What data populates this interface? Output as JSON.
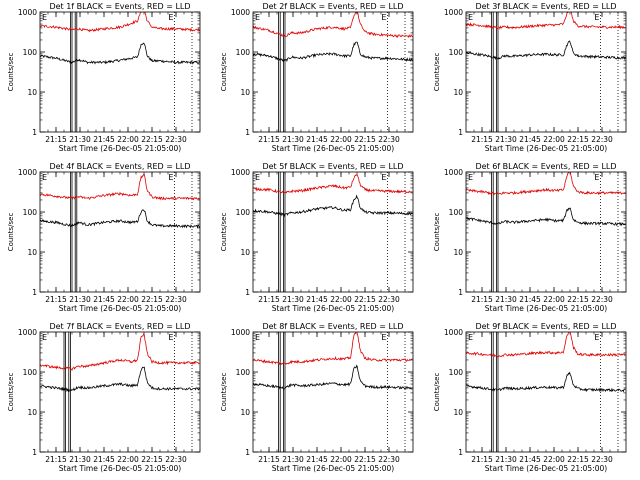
{
  "colors": {
    "events": "#000000",
    "lld": "#e00000",
    "axes": "#000000"
  },
  "chart_data": [
    {
      "type": "line",
      "title": "Det 1f BLACK = Events, RED = LLD",
      "xlabel": "Start Time (26-Dec-05 21:05:00)",
      "ylabel": "Counts/sec",
      "xticks": [
        "21:15",
        "21:30",
        "21:45",
        "22:00",
        "22:15",
        "22:30"
      ],
      "yticks": [
        "1",
        "10",
        "100",
        "1000"
      ],
      "yscale": "log",
      "ylim": [
        1,
        1000
      ],
      "xlim_minutes": [
        0,
        100
      ],
      "markers": [
        "E",
        "E"
      ],
      "vlines_solid": [
        19,
        20,
        22,
        23
      ],
      "vlines_dotted": [
        84,
        95
      ],
      "series": [
        {
          "name": "BLACK",
          "x": [
            0,
            10,
            20,
            24,
            30,
            40,
            50,
            57,
            61,
            63,
            65,
            67,
            70,
            75,
            85,
            95,
            100
          ],
          "y": [
            80,
            70,
            55,
            65,
            55,
            55,
            62,
            70,
            75,
            150,
            180,
            80,
            60,
            60,
            55,
            55,
            55
          ]
        },
        {
          "name": "RED",
          "x": [
            0,
            10,
            20,
            24,
            30,
            40,
            50,
            57,
            61,
            63,
            65,
            67,
            70,
            75,
            85,
            95,
            100
          ],
          "y": [
            450,
            420,
            360,
            380,
            340,
            380,
            420,
            520,
            600,
            1000,
            1200,
            600,
            420,
            380,
            380,
            360,
            360
          ]
        }
      ]
    },
    {
      "type": "line",
      "title": "Det 2f BLACK = Events, RED = LLD",
      "xlabel": "Start Time (26-Dec-05 21:05:00)",
      "ylabel": "Counts/sec",
      "xticks": [
        "21:15",
        "21:30",
        "21:45",
        "22:00",
        "22:15",
        "22:30"
      ],
      "yticks": [
        "1",
        "10",
        "100",
        "1000"
      ],
      "yscale": "log",
      "ylim": [
        1,
        1000
      ],
      "xlim_minutes": [
        0,
        100
      ],
      "markers": [
        "E",
        "E"
      ],
      "vlines_solid": [
        16,
        17,
        19,
        20
      ],
      "vlines_dotted": [
        84,
        95
      ],
      "series": [
        {
          "name": "BLACK",
          "x": [
            0,
            10,
            20,
            24,
            30,
            40,
            50,
            57,
            61,
            63,
            65,
            67,
            70,
            75,
            85,
            95,
            100
          ],
          "y": [
            90,
            80,
            60,
            75,
            70,
            85,
            90,
            80,
            80,
            150,
            180,
            90,
            75,
            70,
            70,
            65,
            65
          ]
        },
        {
          "name": "RED",
          "x": [
            0,
            10,
            20,
            24,
            30,
            40,
            50,
            57,
            61,
            63,
            65,
            67,
            70,
            75,
            85,
            95,
            100
          ],
          "y": [
            420,
            350,
            250,
            300,
            300,
            380,
            420,
            380,
            400,
            800,
            1100,
            500,
            320,
            280,
            260,
            250,
            250
          ]
        }
      ]
    },
    {
      "type": "line",
      "title": "Det 3f BLACK = Events, RED = LLD",
      "xlabel": "Start Time (26-Dec-05 21:05:00)",
      "ylabel": "Counts/sec",
      "xticks": [
        "21:15",
        "21:30",
        "21:45",
        "22:00",
        "22:15",
        "22:30"
      ],
      "yticks": [
        "1",
        "10",
        "100",
        "1000"
      ],
      "yscale": "log",
      "ylim": [
        1,
        1000
      ],
      "xlim_minutes": [
        0,
        100
      ],
      "markers": [
        "E",
        "E"
      ],
      "vlines_solid": [
        16,
        17,
        19,
        20
      ],
      "vlines_dotted": [
        84,
        95
      ],
      "series": [
        {
          "name": "BLACK",
          "x": [
            0,
            10,
            20,
            24,
            30,
            40,
            50,
            57,
            61,
            63,
            65,
            67,
            70,
            75,
            85,
            95,
            100
          ],
          "y": [
            95,
            85,
            70,
            80,
            78,
            85,
            88,
            85,
            85,
            150,
            190,
            95,
            80,
            78,
            75,
            72,
            72
          ]
        },
        {
          "name": "RED",
          "x": [
            0,
            10,
            20,
            24,
            30,
            40,
            50,
            57,
            61,
            63,
            65,
            67,
            70,
            75,
            85,
            95,
            100
          ],
          "y": [
            500,
            460,
            400,
            420,
            410,
            440,
            470,
            480,
            500,
            900,
            1300,
            600,
            450,
            430,
            420,
            420,
            420
          ]
        }
      ]
    },
    {
      "type": "line",
      "title": "Det 4f BLACK = Events, RED = LLD",
      "xlabel": "Start Time (26-Dec-05 21:05:00)",
      "ylabel": "Counts/sec",
      "xticks": [
        "21:15",
        "21:30",
        "21:45",
        "22:00",
        "22:15",
        "22:30"
      ],
      "yticks": [
        "1",
        "10",
        "100",
        "1000"
      ],
      "yscale": "log",
      "ylim": [
        1,
        1000
      ],
      "xlim_minutes": [
        0,
        100
      ],
      "markers": [
        "E",
        "E"
      ],
      "vlines_solid": [
        19,
        20,
        22,
        23
      ],
      "vlines_dotted": [
        84,
        95
      ],
      "series": [
        {
          "name": "BLACK",
          "x": [
            0,
            10,
            20,
            24,
            30,
            40,
            50,
            57,
            61,
            63,
            65,
            67,
            70,
            75,
            85,
            95,
            100
          ],
          "y": [
            60,
            55,
            45,
            55,
            48,
            55,
            60,
            55,
            58,
            100,
            120,
            60,
            48,
            45,
            45,
            44,
            44
          ]
        },
        {
          "name": "RED",
          "x": [
            0,
            10,
            20,
            24,
            30,
            40,
            50,
            57,
            61,
            63,
            65,
            67,
            70,
            75,
            85,
            95,
            100
          ],
          "y": [
            280,
            250,
            220,
            240,
            220,
            260,
            290,
            260,
            280,
            700,
            900,
            350,
            240,
            220,
            220,
            220,
            220
          ]
        }
      ]
    },
    {
      "type": "line",
      "title": "Det 5f BLACK = Events, RED = LLD",
      "xlabel": "Start Time (26-Dec-05 21:05:00)",
      "ylabel": "Counts/sec",
      "xticks": [
        "21:15",
        "21:30",
        "21:45",
        "22:00",
        "22:15",
        "22:30"
      ],
      "yticks": [
        "1",
        "10",
        "100",
        "1000"
      ],
      "yscale": "log",
      "ylim": [
        1,
        1000
      ],
      "xlim_minutes": [
        0,
        100
      ],
      "markers": [
        "E",
        "E"
      ],
      "vlines_solid": [
        16,
        17,
        19,
        20
      ],
      "vlines_dotted": [
        84,
        95
      ],
      "series": [
        {
          "name": "BLACK",
          "x": [
            0,
            10,
            20,
            24,
            30,
            40,
            50,
            57,
            61,
            63,
            65,
            67,
            70,
            75,
            85,
            95,
            100
          ],
          "y": [
            110,
            100,
            85,
            95,
            100,
            120,
            130,
            110,
            115,
            200,
            250,
            130,
            100,
            95,
            95,
            92,
            92
          ]
        },
        {
          "name": "RED",
          "x": [
            0,
            10,
            20,
            24,
            30,
            40,
            50,
            57,
            61,
            63,
            65,
            67,
            70,
            75,
            85,
            95,
            100
          ],
          "y": [
            380,
            360,
            300,
            330,
            340,
            400,
            450,
            400,
            420,
            700,
            900,
            480,
            360,
            340,
            330,
            320,
            330
          ]
        }
      ]
    },
    {
      "type": "line",
      "title": "Det 6f BLACK = Events, RED = LLD",
      "xlabel": "Start Time (26-Dec-05 21:05:00)",
      "ylabel": "Counts/sec",
      "xticks": [
        "21:15",
        "21:30",
        "21:45",
        "22:00",
        "22:15",
        "22:30"
      ],
      "yticks": [
        "1",
        "10",
        "100",
        "1000"
      ],
      "yscale": "log",
      "ylim": [
        1,
        1000
      ],
      "xlim_minutes": [
        0,
        100
      ],
      "markers": [
        "E",
        "E"
      ],
      "vlines_solid": [
        16,
        17,
        19,
        20
      ],
      "vlines_dotted": [
        84,
        95
      ],
      "series": [
        {
          "name": "BLACK",
          "x": [
            0,
            10,
            20,
            24,
            30,
            40,
            50,
            57,
            61,
            63,
            65,
            67,
            70,
            75,
            85,
            95,
            100
          ],
          "y": [
            70,
            60,
            50,
            58,
            55,
            60,
            65,
            60,
            62,
            110,
            130,
            65,
            55,
            52,
            52,
            50,
            50
          ]
        },
        {
          "name": "RED",
          "x": [
            0,
            10,
            20,
            24,
            30,
            40,
            50,
            57,
            61,
            63,
            65,
            67,
            70,
            75,
            85,
            95,
            100
          ],
          "y": [
            350,
            320,
            280,
            300,
            300,
            330,
            360,
            340,
            360,
            800,
            1100,
            450,
            320,
            300,
            300,
            300,
            300
          ]
        }
      ]
    },
    {
      "type": "line",
      "title": "Det 7f BLACK = Events, RED = LLD",
      "xlabel": "Start Time (26-Dec-05 21:05:00)",
      "ylabel": "Counts/sec",
      "xticks": [
        "21:15",
        "21:30",
        "21:45",
        "22:00",
        "22:15",
        "22:30"
      ],
      "yticks": [
        "1",
        "10",
        "100",
        "1000"
      ],
      "yscale": "log",
      "ylim": [
        1,
        1000
      ],
      "xlim_minutes": [
        0,
        100
      ],
      "markers": [
        "E",
        "E"
      ],
      "vlines_solid": [
        15,
        16,
        18,
        19
      ],
      "vlines_dotted": [
        84,
        95
      ],
      "series": [
        {
          "name": "BLACK",
          "x": [
            0,
            10,
            20,
            24,
            30,
            40,
            50,
            57,
            61,
            63,
            65,
            67,
            70,
            75,
            85,
            95,
            100
          ],
          "y": [
            45,
            40,
            35,
            42,
            40,
            45,
            50,
            45,
            48,
            110,
            140,
            55,
            40,
            38,
            38,
            38,
            38
          ]
        },
        {
          "name": "RED",
          "x": [
            0,
            10,
            20,
            24,
            30,
            40,
            50,
            57,
            61,
            63,
            65,
            67,
            70,
            75,
            85,
            95,
            100
          ],
          "y": [
            150,
            130,
            120,
            140,
            140,
            170,
            200,
            180,
            200,
            700,
            900,
            300,
            180,
            170,
            170,
            170,
            170
          ]
        }
      ]
    },
    {
      "type": "line",
      "title": "Det 8f BLACK = Events, RED = LLD",
      "xlabel": "Start Time (26-Dec-05 21:05:00)",
      "ylabel": "Counts/sec",
      "xticks": [
        "21:15",
        "21:30",
        "21:45",
        "22:00",
        "22:15",
        "22:30"
      ],
      "yticks": [
        "1",
        "10",
        "100",
        "1000"
      ],
      "yscale": "log",
      "ylim": [
        1,
        1000
      ],
      "xlim_minutes": [
        0,
        100
      ],
      "markers": [
        "E",
        "E"
      ],
      "vlines_solid": [
        16,
        17,
        19,
        20
      ],
      "vlines_dotted": [
        84,
        95
      ],
      "series": [
        {
          "name": "BLACK",
          "x": [
            0,
            10,
            20,
            24,
            30,
            40,
            50,
            57,
            61,
            63,
            65,
            67,
            70,
            75,
            85,
            95,
            100
          ],
          "y": [
            50,
            45,
            40,
            48,
            45,
            48,
            52,
            48,
            50,
            120,
            140,
            60,
            45,
            42,
            42,
            40,
            40
          ]
        },
        {
          "name": "RED",
          "x": [
            0,
            10,
            20,
            24,
            30,
            40,
            50,
            57,
            61,
            63,
            65,
            67,
            70,
            75,
            85,
            95,
            100
          ],
          "y": [
            200,
            180,
            160,
            180,
            180,
            200,
            220,
            210,
            230,
            800,
            1100,
            350,
            220,
            200,
            200,
            200,
            200
          ]
        }
      ]
    },
    {
      "type": "line",
      "title": "Det 9f BLACK = Events, RED = LLD",
      "xlabel": "Start Time (26-Dec-05 21:05:00)",
      "ylabel": "Counts/sec",
      "xticks": [
        "21:15",
        "21:30",
        "21:45",
        "22:00",
        "22:15",
        "22:30"
      ],
      "yticks": [
        "1",
        "10",
        "100",
        "1000"
      ],
      "yscale": "log",
      "ylim": [
        1,
        1000
      ],
      "xlim_minutes": [
        0,
        100
      ],
      "markers": [
        "E",
        "E"
      ],
      "vlines_solid": [
        16,
        17,
        19,
        20
      ],
      "vlines_dotted": [
        84,
        95
      ],
      "series": [
        {
          "name": "BLACK",
          "x": [
            0,
            10,
            20,
            24,
            30,
            40,
            50,
            57,
            61,
            63,
            65,
            67,
            70,
            75,
            85,
            95,
            100
          ],
          "y": [
            45,
            40,
            35,
            40,
            38,
            40,
            42,
            40,
            42,
            80,
            95,
            48,
            38,
            36,
            36,
            35,
            35
          ]
        },
        {
          "name": "RED",
          "x": [
            0,
            10,
            20,
            24,
            30,
            40,
            50,
            57,
            61,
            63,
            65,
            67,
            70,
            75,
            85,
            95,
            100
          ],
          "y": [
            300,
            280,
            250,
            270,
            270,
            290,
            310,
            300,
            320,
            800,
            1100,
            420,
            280,
            270,
            270,
            270,
            270
          ]
        }
      ]
    }
  ]
}
